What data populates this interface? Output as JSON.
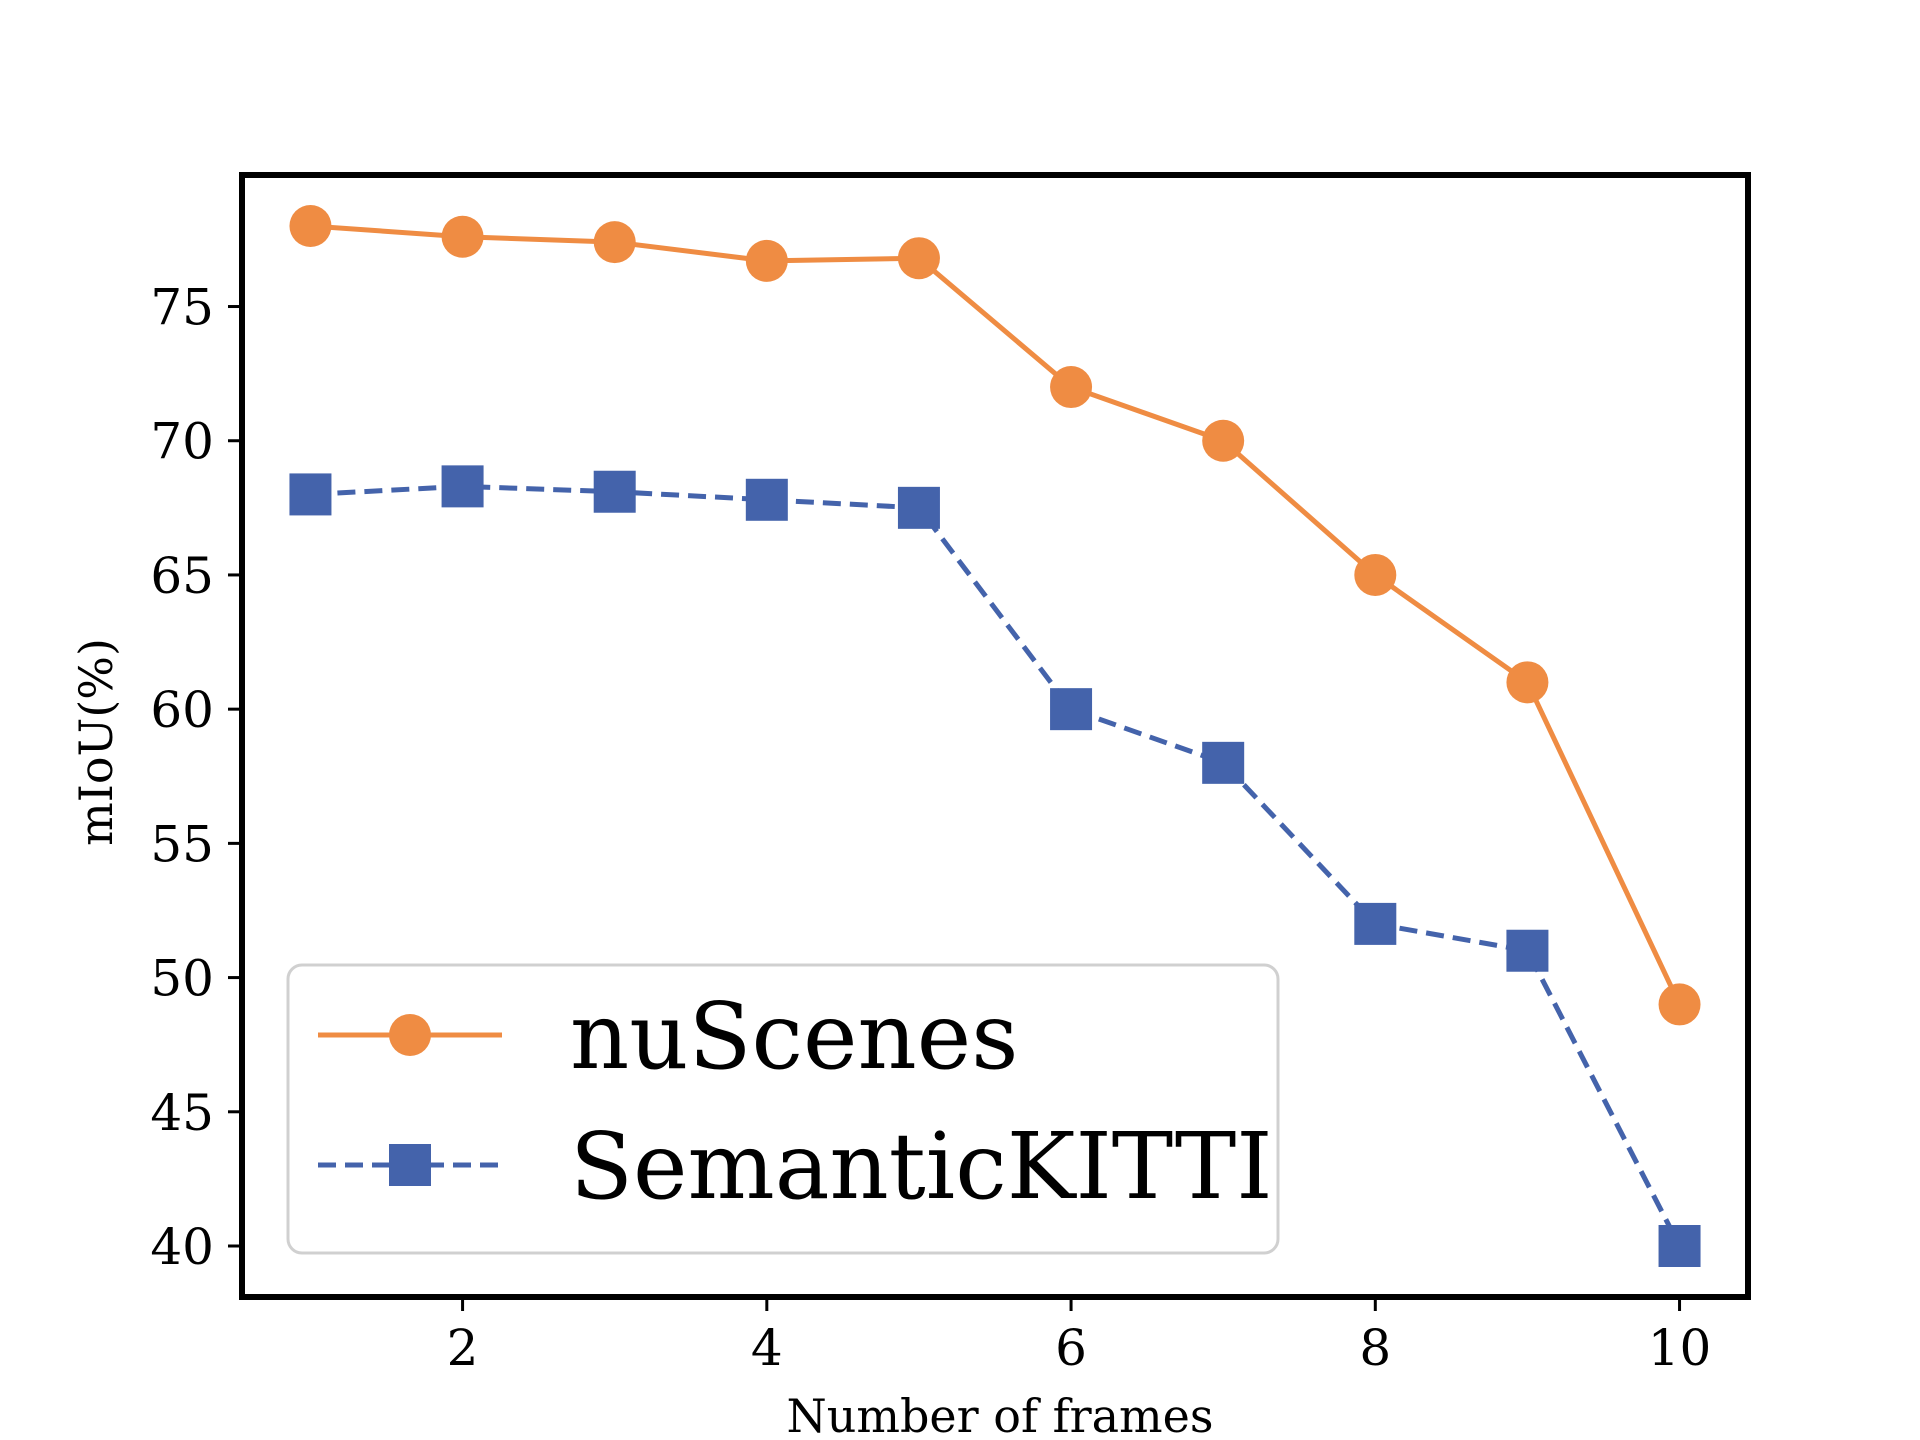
{
  "chart_data": {
    "type": "line",
    "title": "",
    "xlabel": "Number of frames",
    "ylabel": "mIoU(%)",
    "xlim": [
      0.55,
      10.45
    ],
    "ylim": [
      38.1,
      79.9
    ],
    "xticks": [
      2,
      4,
      6,
      8,
      10
    ],
    "yticks": [
      40,
      45,
      50,
      55,
      60,
      65,
      70,
      75
    ],
    "grid": false,
    "legend_position": "lower-left",
    "x": [
      1,
      2,
      3,
      4,
      5,
      6,
      7,
      8,
      9,
      10
    ],
    "series": [
      {
        "name": "nuScenes",
        "color": "#ef8c43",
        "marker": "circle",
        "line": "solid",
        "values": [
          78.0,
          77.6,
          77.4,
          76.7,
          76.8,
          72.0,
          70.0,
          65.0,
          61.0,
          49.0
        ]
      },
      {
        "name": "SemanticKITTI",
        "color": "#4463ab",
        "marker": "square",
        "line": "dashed",
        "values": [
          68.0,
          68.3,
          68.1,
          67.8,
          67.5,
          60.0,
          58.0,
          52.0,
          51.0,
          40.0
        ]
      }
    ]
  }
}
